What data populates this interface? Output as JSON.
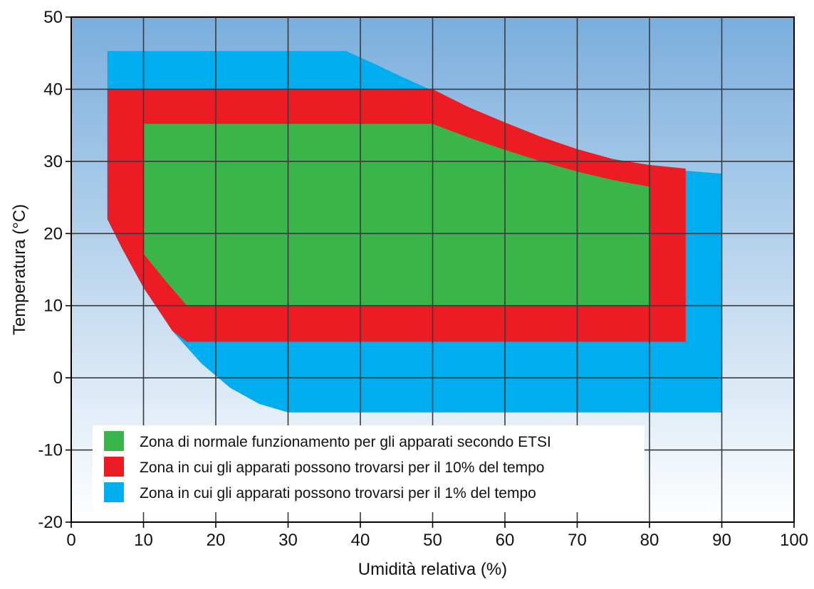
{
  "chart_data": {
    "type": "area",
    "title": "",
    "xlabel": "Umidità relativa (%)",
    "ylabel": "Temperatura (°C)",
    "xlim": [
      0,
      100
    ],
    "ylim": [
      -20,
      50
    ],
    "xticks": [
      0,
      10,
      20,
      30,
      40,
      50,
      60,
      70,
      80,
      90,
      100
    ],
    "yticks": [
      -20,
      -10,
      0,
      10,
      20,
      30,
      40,
      50
    ],
    "grid": true,
    "legend_position": "bottom-left",
    "background_gradient": [
      "#7aaedd",
      "#ffffff"
    ],
    "series": [
      {
        "name": "Zona in cui gli apparati possono trovarsi per il 1% del tempo",
        "color": "#00aeef",
        "points": [
          [
            5,
            45.3
          ],
          [
            38,
            45.3
          ],
          [
            42,
            43.5
          ],
          [
            46,
            41.6
          ],
          [
            50,
            39.8
          ],
          [
            55,
            37.4
          ],
          [
            60,
            35.2
          ],
          [
            65,
            33.2
          ],
          [
            70,
            31.6
          ],
          [
            75,
            30.2
          ],
          [
            80,
            29.3
          ],
          [
            85,
            28.7
          ],
          [
            90,
            28.3
          ],
          [
            90,
            -4.8
          ],
          [
            30,
            -4.8
          ],
          [
            26,
            -3.6
          ],
          [
            22,
            -1.4
          ],
          [
            18,
            2.0
          ],
          [
            14,
            6.5
          ],
          [
            10,
            12.5
          ],
          [
            7,
            18.0
          ],
          [
            5,
            22.0
          ]
        ]
      },
      {
        "name": "Zona in cui gli apparati possono trovarsi per il 10% del tempo",
        "color": "#ed1c24",
        "points": [
          [
            5,
            40
          ],
          [
            50,
            40
          ],
          [
            55,
            37.5
          ],
          [
            60,
            35.4
          ],
          [
            65,
            33.4
          ],
          [
            70,
            31.7
          ],
          [
            75,
            30.3
          ],
          [
            80,
            29.5
          ],
          [
            85,
            29
          ],
          [
            85,
            5
          ],
          [
            16,
            5
          ],
          [
            14,
            6.5
          ],
          [
            10,
            12.5
          ],
          [
            7,
            18.0
          ],
          [
            5,
            22.0
          ]
        ]
      },
      {
        "name": "Zona di normale funzionamento per gli apparati secondo ETSI",
        "color": "#39b54a",
        "points": [
          [
            10,
            35.2
          ],
          [
            50,
            35.2
          ],
          [
            55,
            33.3
          ],
          [
            60,
            31.6
          ],
          [
            65,
            30.0
          ],
          [
            70,
            28.6
          ],
          [
            75,
            27.4
          ],
          [
            80,
            26.5
          ],
          [
            80,
            10
          ],
          [
            16,
            10
          ],
          [
            13,
            13.5
          ],
          [
            10,
            17.2
          ]
        ]
      }
    ]
  }
}
